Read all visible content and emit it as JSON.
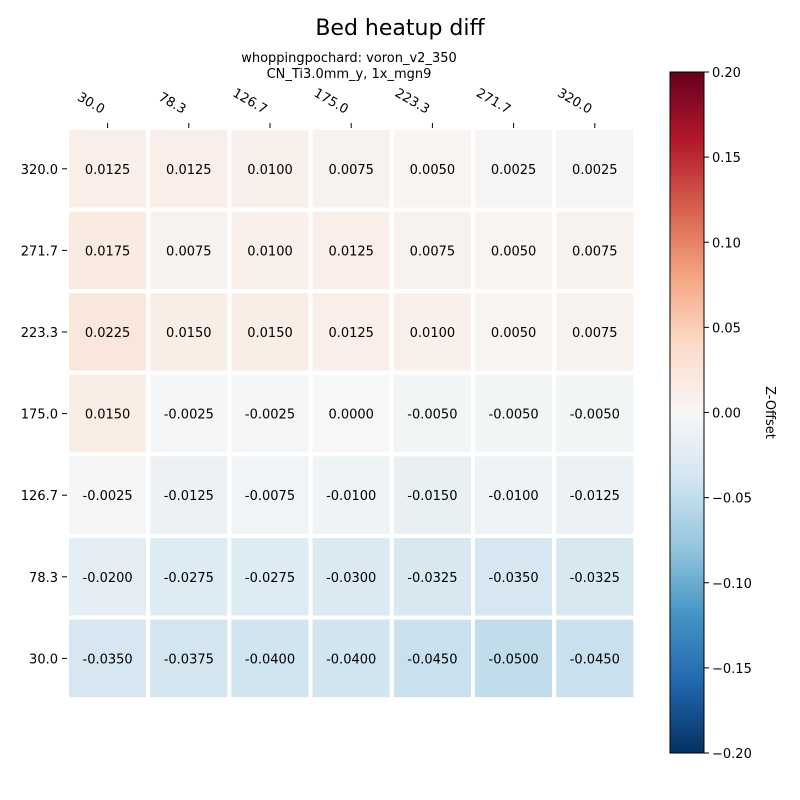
{
  "chart_data": {
    "type": "heatmap",
    "title": "Bed heatup diff",
    "subtitle_lines": [
      "whoppingpochard: voron_v2_350",
      "CN_Ti3.0mm_y, 1x_mgn9"
    ],
    "x_ticks": [
      "30.0",
      "78.3",
      "126.7",
      "175.0",
      "223.3",
      "271.7",
      "320.0"
    ],
    "y_ticks": [
      "320.0",
      "271.7",
      "223.3",
      "175.0",
      "126.7",
      "78.3",
      "30.0"
    ],
    "values": [
      [
        0.0125,
        0.0125,
        0.01,
        0.0075,
        0.005,
        0.0025,
        0.0025
      ],
      [
        0.0175,
        0.0075,
        0.01,
        0.0125,
        0.0075,
        0.005,
        0.0075
      ],
      [
        0.0225,
        0.015,
        0.015,
        0.0125,
        0.01,
        0.005,
        0.0075
      ],
      [
        0.015,
        -0.0025,
        -0.0025,
        0.0,
        -0.005,
        -0.005,
        -0.005
      ],
      [
        -0.0025,
        -0.0125,
        -0.0075,
        -0.01,
        -0.015,
        -0.01,
        -0.0125
      ],
      [
        -0.02,
        -0.0275,
        -0.0275,
        -0.03,
        -0.0325,
        -0.035,
        -0.0325
      ],
      [
        -0.035,
        -0.0375,
        -0.04,
        -0.04,
        -0.045,
        -0.05,
        -0.045
      ]
    ],
    "value_labels": [
      [
        "0.0125",
        "0.0125",
        "0.0100",
        "0.0075",
        "0.0050",
        "0.0025",
        "0.0025"
      ],
      [
        "0.0175",
        "0.0075",
        "0.0100",
        "0.0125",
        "0.0075",
        "0.0050",
        "0.0075"
      ],
      [
        "0.0225",
        "0.0150",
        "0.0150",
        "0.0125",
        "0.0100",
        "0.0050",
        "0.0075"
      ],
      [
        "0.0150",
        "-0.0025",
        "-0.0025",
        "0.0000",
        "-0.0050",
        "-0.0050",
        "-0.0050"
      ],
      [
        "-0.0025",
        "-0.0125",
        "-0.0075",
        "-0.0100",
        "-0.0150",
        "-0.0100",
        "-0.0125"
      ],
      [
        "-0.0200",
        "-0.0275",
        "-0.0275",
        "-0.0300",
        "-0.0325",
        "-0.0350",
        "-0.0325"
      ],
      [
        "-0.0350",
        "-0.0375",
        "-0.0400",
        "-0.0400",
        "-0.0450",
        "-0.0500",
        "-0.0450"
      ]
    ],
    "colorbar": {
      "label": "Z-Offset",
      "min": -0.2,
      "max": 0.2,
      "ticks": [
        -0.2,
        -0.15,
        -0.1,
        -0.05,
        0.0,
        0.05,
        0.1,
        0.15,
        0.2
      ],
      "tick_labels": [
        "−0.20",
        "−0.15",
        "−0.10",
        "−0.05",
        "0.00",
        "0.05",
        "0.10",
        "0.15",
        "0.20"
      ],
      "colormap": "RdBu_r",
      "colormap_stops": [
        "#053061",
        "#2166ac",
        "#4393c3",
        "#92c5de",
        "#d1e5f0",
        "#f7f7f7",
        "#fddbc7",
        "#f4a582",
        "#d6604d",
        "#b2182b",
        "#67001f"
      ]
    },
    "grid": false,
    "x_tick_position": "top",
    "x_tick_rotation": "rotated"
  }
}
